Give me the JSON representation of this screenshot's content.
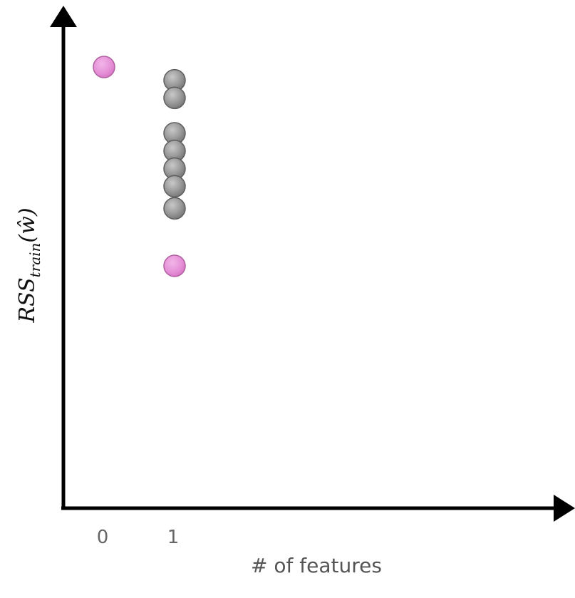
{
  "chart_data": {
    "type": "scatter",
    "xlabel": "# of features",
    "ylabel": {
      "main": "RSS",
      "subscript": "train",
      "argument": "(ŵ)"
    },
    "x_ticks": [
      "0",
      "1"
    ],
    "y_ticks": [],
    "grid": false,
    "legend": "none",
    "colors": {
      "highlight": "#e58fd6",
      "candidate": "#9b9b9b",
      "axis": "#000000"
    },
    "series": [
      {
        "role": "highlight",
        "color": "#e58fd6",
        "points": [
          {
            "x": 0,
            "y": 10.0
          },
          {
            "x": 1,
            "y": 5.5
          }
        ]
      },
      {
        "role": "candidate",
        "color": "#9b9b9b",
        "points": [
          {
            "x": 1,
            "y": 9.7
          },
          {
            "x": 1,
            "y": 9.3
          },
          {
            "x": 1,
            "y": 8.5
          },
          {
            "x": 1,
            "y": 8.1
          },
          {
            "x": 1,
            "y": 7.7
          },
          {
            "x": 1,
            "y": 7.3
          },
          {
            "x": 1,
            "y": 6.8
          }
        ]
      }
    ]
  }
}
